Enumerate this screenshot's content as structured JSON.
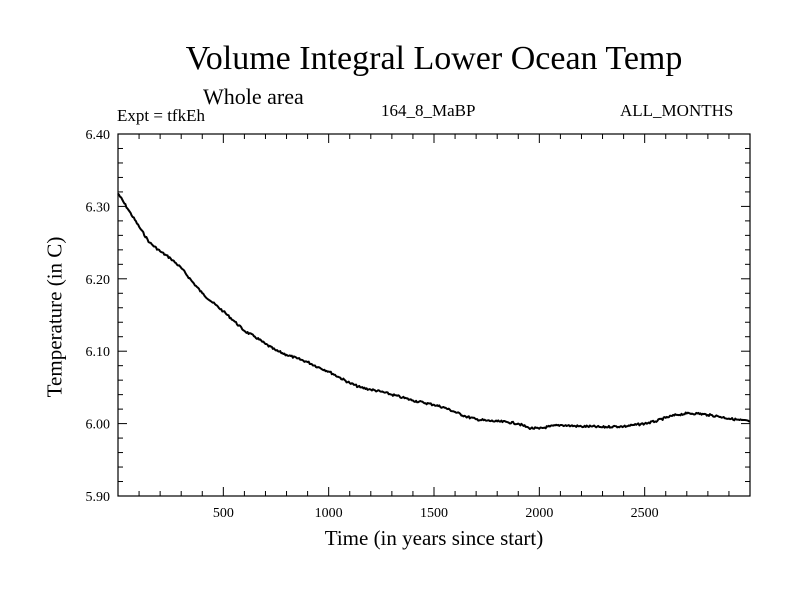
{
  "header": {
    "title": "Volume Integral Lower Ocean Temp",
    "subtitle": "Whole area",
    "expt": "Expt = tfkEh",
    "period": "164_8_MaBP",
    "months": "ALL_MONTHS"
  },
  "chart_data": {
    "type": "line",
    "xlabel": "Time (in years since start)",
    "ylabel": "Temperature (in C)",
    "xlim": [
      0,
      3000
    ],
    "ylim": [
      5.9,
      6.4
    ],
    "xticks": [
      500,
      1000,
      1500,
      2000,
      2500
    ],
    "yticks": [
      5.9,
      6.0,
      6.1,
      6.2,
      6.3,
      6.4
    ],
    "ytick_labels": [
      "5.90",
      "6.00",
      "6.10",
      "6.20",
      "6.30",
      "6.40"
    ],
    "grid": false,
    "series": [
      {
        "color": "#000000",
        "x": [
          0,
          50,
          100,
          150,
          200,
          250,
          300,
          350,
          400,
          450,
          500,
          550,
          600,
          650,
          700,
          750,
          800,
          850,
          900,
          950,
          1000,
          1050,
          1100,
          1150,
          1200,
          1250,
          1300,
          1350,
          1400,
          1450,
          1500,
          1550,
          1600,
          1650,
          1700,
          1750,
          1800,
          1850,
          1900,
          1950,
          2000,
          2050,
          2100,
          2150,
          2200,
          2250,
          2300,
          2350,
          2400,
          2450,
          2500,
          2550,
          2600,
          2650,
          2700,
          2750,
          2800,
          2850,
          2900,
          2950,
          3000
        ],
        "y": [
          6.318,
          6.295,
          6.272,
          6.25,
          6.238,
          6.228,
          6.215,
          6.197,
          6.18,
          6.167,
          6.155,
          6.142,
          6.128,
          6.12,
          6.11,
          6.101,
          6.095,
          6.09,
          6.085,
          6.078,
          6.072,
          6.064,
          6.056,
          6.05,
          6.047,
          6.044,
          6.04,
          6.036,
          6.032,
          6.029,
          6.026,
          6.022,
          6.016,
          6.01,
          6.006,
          6.004,
          6.003,
          6.002,
          6.0,
          5.994,
          5.993,
          5.996,
          5.998,
          5.997,
          5.996,
          5.996,
          5.995,
          5.996,
          5.996,
          5.998,
          6.0,
          6.003,
          6.008,
          6.012,
          6.014,
          6.014,
          6.012,
          6.01,
          6.007,
          6.005,
          6.003
        ]
      }
    ]
  }
}
